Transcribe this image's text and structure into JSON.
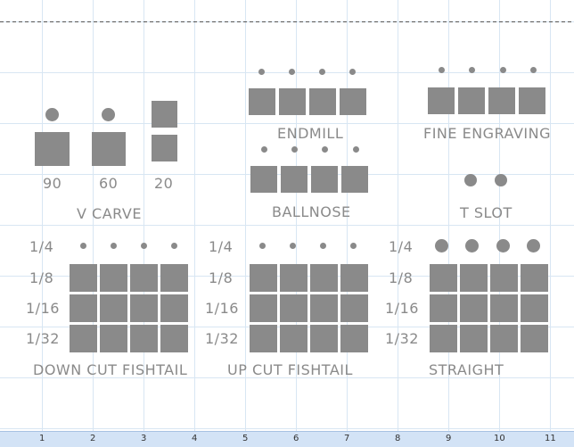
{
  "colors": {
    "shape": "#8a8a8a",
    "grid": "#d8e6f3",
    "ruler": "#d3e3f6",
    "label": "#8a8a8a"
  },
  "groups": {
    "vcarve": {
      "name": "V CARVE",
      "angles": [
        "90",
        "60",
        "20"
      ]
    },
    "endmill": {
      "name": "ENDMILL"
    },
    "fine_engraving": {
      "name": "FINE ENGRAVING"
    },
    "ballnose": {
      "name": "BALLNOSE"
    },
    "tslot": {
      "name": "T SLOT"
    },
    "down_cut": {
      "name": "DOWN CUT FISHTAIL"
    },
    "up_cut": {
      "name": "UP CUT FISHTAIL"
    },
    "straight": {
      "name": "STRAIGHT"
    }
  },
  "sizes": [
    "1/4",
    "1/8",
    "1/16",
    "1/32"
  ],
  "ruler": {
    "numbers": [
      "1",
      "2",
      "3",
      "4",
      "5",
      "6",
      "7",
      "8",
      "9",
      "10",
      "11"
    ]
  }
}
